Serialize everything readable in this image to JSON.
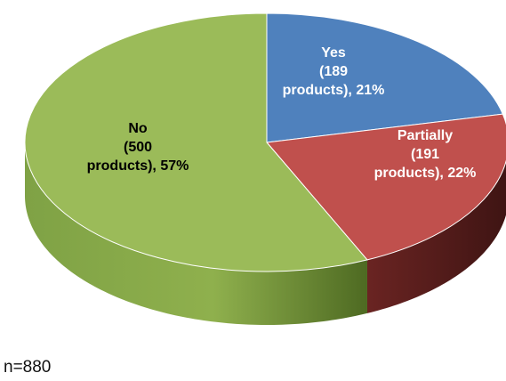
{
  "chart_data": {
    "type": "pie",
    "style": "3d",
    "slices": [
      {
        "name": "Yes",
        "count": 189,
        "percent": 21,
        "color": "#4F81BD",
        "side_color": "#2F5A8C",
        "label_lines": [
          "Yes",
          "(189",
          "products), 21%"
        ],
        "label_color": "#FFFFFF"
      },
      {
        "name": "Partially",
        "count": 191,
        "percent": 22,
        "color": "#C0504D",
        "side_color": "#5A1F1D",
        "label_lines": [
          "Partially",
          "(191",
          "products), 22%"
        ],
        "label_color": "#FFFFFF"
      },
      {
        "name": "No",
        "count": 500,
        "percent": 57,
        "color": "#9BBB59",
        "side_color": "#6E8E35",
        "label_lines": [
          "No",
          "(500",
          "products), 57%"
        ],
        "label_color": "#000000"
      }
    ]
  },
  "note": "n=880"
}
